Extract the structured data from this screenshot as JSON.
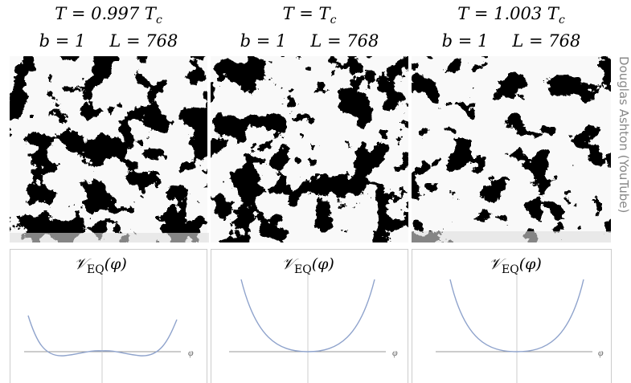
{
  "panels": [
    {
      "temp_label": "T = 0.997 T",
      "temp_sub": "c",
      "b_label": "b = 1",
      "l_label": "L = 768",
      "potential": {
        "symbol": "𝒱",
        "sub": "EQ",
        "arg": "(φ)"
      },
      "axis_label": "φ"
    },
    {
      "temp_label": "T = T",
      "temp_sub": "c",
      "b_label": "b = 1",
      "l_label": "L = 768",
      "potential": {
        "symbol": "𝒱",
        "sub": "EQ",
        "arg": "(φ)"
      },
      "axis_label": "φ"
    },
    {
      "temp_label": "T = 1.003 T",
      "temp_sub": "c",
      "b_label": "b = 1",
      "l_label": "L = 768",
      "potential": {
        "symbol": "𝒱",
        "sub": "EQ",
        "arg": "(φ)"
      },
      "axis_label": "φ"
    }
  ],
  "credit": "Douglas Ashton (YouTube)"
}
